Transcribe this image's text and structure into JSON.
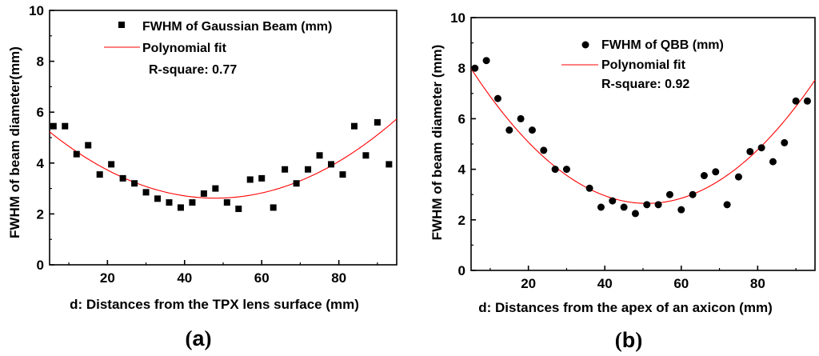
{
  "chart_data": [
    {
      "type": "scatter",
      "caption": "(a)",
      "caption_open": "(",
      "caption_letter": "a",
      "caption_close": ")",
      "xlabel": "d: Distances from the TPX lens surface (mm)",
      "ylabel": "FWHM of beam diameter(mm)",
      "xlim": [
        5,
        95
      ],
      "ylim": [
        0,
        10
      ],
      "xticks": [
        20,
        40,
        60,
        80
      ],
      "yticks": [
        0,
        2,
        4,
        6,
        8,
        10
      ],
      "marker": "square",
      "series": [
        {
          "name": "FWHM of Gaussian Beam (mm)",
          "x": [
            6,
            9,
            12,
            15,
            18,
            21,
            24,
            27,
            30,
            33,
            36,
            39,
            42,
            45,
            48,
            51,
            54,
            57,
            60,
            63,
            66,
            69,
            72,
            75,
            78,
            81,
            84,
            87,
            90,
            93
          ],
          "y": [
            5.45,
            5.45,
            4.35,
            4.7,
            3.55,
            3.95,
            3.4,
            3.2,
            2.85,
            2.6,
            2.45,
            2.25,
            2.45,
            2.8,
            3.0,
            2.45,
            2.2,
            3.35,
            3.4,
            2.25,
            3.75,
            3.2,
            3.75,
            4.3,
            3.95,
            3.55,
            5.45,
            4.3,
            5.6,
            3.95
          ]
        }
      ],
      "fit": {
        "name": "Polynomial fit",
        "color": "#ff0000",
        "vertex_x": 48,
        "vertex_y": 2.62,
        "a": 0.00141,
        "x_range": [
          5,
          95
        ]
      },
      "annotation": "R-square: 0.77"
    },
    {
      "type": "scatter",
      "caption": "(b)",
      "caption_open": "(",
      "caption_letter": "b",
      "caption_close": ")",
      "xlabel": "d: Distances from the apex of an axicon (mm)",
      "ylabel": "FWHM of beam diameter (mm)",
      "xlim": [
        5,
        95
      ],
      "ylim": [
        0,
        10
      ],
      "xticks": [
        20,
        40,
        60,
        80
      ],
      "yticks": [
        0,
        2,
        4,
        6,
        8,
        10
      ],
      "marker": "circle",
      "series": [
        {
          "name": "FWHM of QBB (mm)",
          "x": [
            6,
            9,
            12,
            15,
            18,
            21,
            24,
            27,
            30,
            36,
            39,
            42,
            45,
            48,
            51,
            54,
            57,
            60,
            63,
            66,
            69,
            72,
            75,
            78,
            81,
            84,
            87,
            90,
            93
          ],
          "y": [
            8.0,
            8.3,
            6.8,
            5.55,
            6.0,
            5.55,
            4.75,
            4.0,
            4.0,
            3.25,
            2.5,
            2.75,
            2.5,
            2.25,
            2.6,
            2.6,
            3.0,
            2.4,
            3.0,
            3.75,
            3.9,
            2.6,
            3.7,
            4.7,
            4.85,
            4.3,
            5.05,
            6.7,
            6.7
          ]
        }
      ],
      "fit": {
        "name": "Polynomial fit",
        "color": "#ff0000",
        "vertex_x": 51,
        "vertex_y": 2.65,
        "a": 0.00252,
        "x_range": [
          5,
          95
        ]
      },
      "annotation": "R-square: 0.92"
    }
  ]
}
